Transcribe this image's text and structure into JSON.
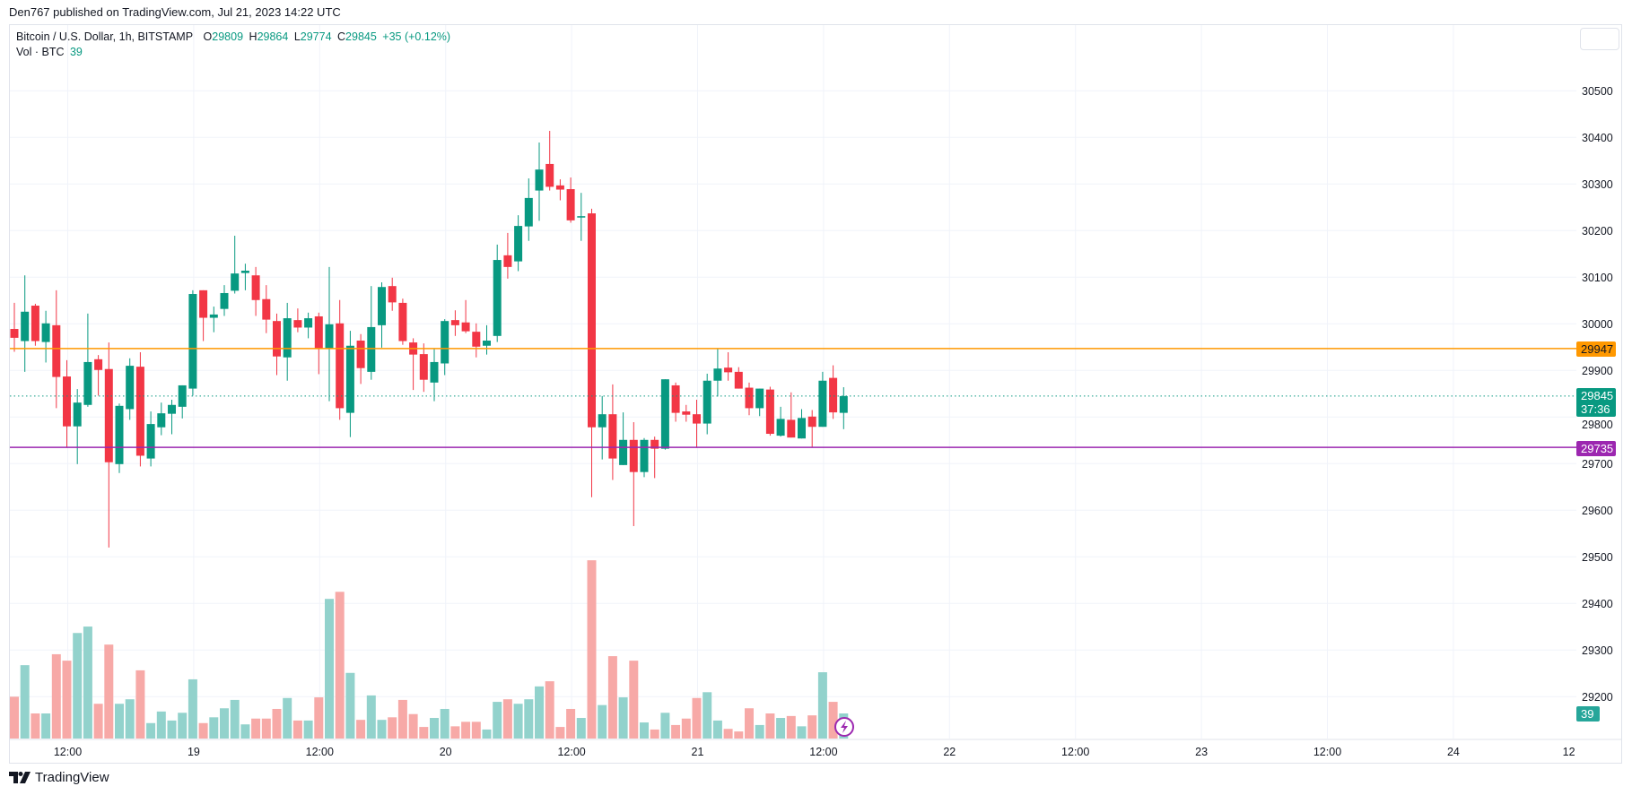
{
  "header": {
    "published": "Den767 published on TradingView.com, Jul 21, 2023 14:22 UTC"
  },
  "legend": {
    "symbol": "Bitcoin / U.S. Dollar, 1h, BITSTAMP",
    "o_label": "O",
    "o": "29809",
    "h_label": "H",
    "h": "29864",
    "l_label": "L",
    "l": "29774",
    "c_label": "C",
    "c": "29845",
    "change": "+35 (+0.12%)",
    "vol_label": "Vol · BTC",
    "vol": "39"
  },
  "tags": {
    "orange_line": "29947",
    "last_price": "29845",
    "countdown": "37:36",
    "purple_line": "29735",
    "volume": "39"
  },
  "footer": {
    "brand": "TradingView"
  },
  "colors": {
    "up": "#089981",
    "down": "#f23645",
    "vol_up": "#92d2cc",
    "vol_down": "#f7a9a7",
    "orange": "#ff9800",
    "purple": "#9c27b0",
    "grid": "#f0f3fa"
  },
  "chart_data": {
    "type": "candlestick",
    "title": "Bitcoin / U.S. Dollar, 1h, BITSTAMP",
    "interval": "1h",
    "first_bar": "Jul 18 07:00",
    "last_bar": "Jul 21 14:00",
    "ylim": [
      29100,
      30560
    ],
    "y_ticks": [
      "30500",
      "30400",
      "30300",
      "30200",
      "30100",
      "30000",
      "29900",
      "29800",
      "29700",
      "29600",
      "29500",
      "29400",
      "29300",
      "29200"
    ],
    "x_ticks": [
      {
        "label": "12:00",
        "hour": 5
      },
      {
        "label": "19",
        "hour": 17
      },
      {
        "label": "12:00",
        "hour": 29
      },
      {
        "label": "20",
        "hour": 41
      },
      {
        "label": "12:00",
        "hour": 53
      },
      {
        "label": "21",
        "hour": 65
      },
      {
        "label": "12:00",
        "hour": 77
      },
      {
        "label": "22",
        "hour": 89
      },
      {
        "label": "12:00",
        "hour": 101
      },
      {
        "label": "23",
        "hour": 113
      },
      {
        "label": "12:00",
        "hour": 125
      },
      {
        "label": "24",
        "hour": 137
      },
      {
        "label": "12",
        "hour": 148
      }
    ],
    "horizontal_lines": [
      {
        "price": 29947,
        "color": "orange"
      },
      {
        "price": 29735,
        "color": "purple"
      }
    ],
    "last_price_line": 29845,
    "ohlc": [
      [
        29989,
        30045,
        29940,
        29970
      ],
      [
        29963,
        30104,
        29897,
        30026
      ],
      [
        30039,
        30043,
        29953,
        29963
      ],
      [
        29961,
        30028,
        29917,
        30001
      ],
      [
        29997,
        30072,
        29819,
        29886
      ],
      [
        29887,
        29922,
        29735,
        29780
      ],
      [
        29780,
        29860,
        29699,
        29831
      ],
      [
        29826,
        30022,
        29822,
        29918
      ],
      [
        29924,
        29933,
        29846,
        29901
      ],
      [
        29903,
        29960,
        29520,
        29703
      ],
      [
        29699,
        29829,
        29680,
        29824
      ],
      [
        29817,
        29926,
        29794,
        29910
      ],
      [
        29908,
        29939,
        29694,
        29717
      ],
      [
        29711,
        29812,
        29694,
        29785
      ],
      [
        29778,
        29831,
        29761,
        29808
      ],
      [
        29807,
        29837,
        29763,
        29826
      ],
      [
        29822,
        29868,
        29797,
        29868
      ],
      [
        29861,
        30072,
        29846,
        30064
      ],
      [
        30072,
        30072,
        29963,
        30013
      ],
      [
        30013,
        30037,
        29982,
        30020
      ],
      [
        30032,
        30083,
        30017,
        30066
      ],
      [
        30071,
        30189,
        30065,
        30108
      ],
      [
        30109,
        30129,
        30072,
        30114
      ],
      [
        30104,
        30122,
        30017,
        30051
      ],
      [
        30053,
        30083,
        29980,
        30009
      ],
      [
        30006,
        30022,
        29890,
        29930
      ],
      [
        29928,
        30045,
        29878,
        30012
      ],
      [
        30008,
        30033,
        29982,
        29992
      ],
      [
        29992,
        30024,
        29969,
        30012
      ],
      [
        30016,
        30024,
        29892,
        29947
      ],
      [
        29947,
        30122,
        29834,
        29999
      ],
      [
        30001,
        30051,
        29794,
        29819
      ],
      [
        29809,
        29985,
        29757,
        29953
      ],
      [
        29964,
        29978,
        29871,
        29905
      ],
      [
        29897,
        30081,
        29880,
        29993
      ],
      [
        29997,
        30089,
        29949,
        30079
      ],
      [
        30081,
        30099,
        30028,
        30046
      ],
      [
        30045,
        30054,
        29955,
        29963
      ],
      [
        29960,
        29969,
        29858,
        29934
      ],
      [
        29935,
        29958,
        29854,
        29880
      ],
      [
        29874,
        29946,
        29834,
        29918
      ],
      [
        29915,
        30010,
        29890,
        30006
      ],
      [
        30008,
        30029,
        29974,
        29997
      ],
      [
        30003,
        30051,
        29980,
        29984
      ],
      [
        29983,
        30001,
        29928,
        29951
      ],
      [
        29953,
        29997,
        29934,
        29964
      ],
      [
        29974,
        30170,
        29961,
        30137
      ],
      [
        30147,
        30195,
        30097,
        30122
      ],
      [
        30134,
        30233,
        30113,
        30210
      ],
      [
        30209,
        30312,
        30178,
        30270
      ],
      [
        30286,
        30389,
        30221,
        30331
      ],
      [
        30343,
        30414,
        30286,
        30294
      ],
      [
        30297,
        30310,
        30265,
        30288
      ],
      [
        30289,
        30314,
        30217,
        30222
      ],
      [
        30228,
        30281,
        30178,
        30231
      ],
      [
        30237,
        30247,
        29628,
        29778
      ],
      [
        29778,
        29845,
        29709,
        29806
      ],
      [
        29806,
        29870,
        29665,
        29711
      ],
      [
        29697,
        29810,
        29697,
        29751
      ],
      [
        29751,
        29789,
        29566,
        29682
      ],
      [
        29682,
        29755,
        29671,
        29751
      ],
      [
        29751,
        29758,
        29669,
        29732
      ],
      [
        29732,
        29881,
        29730,
        29881
      ],
      [
        29868,
        29874,
        29790,
        29809
      ],
      [
        29812,
        29826,
        29790,
        29805
      ],
      [
        29806,
        29837,
        29734,
        29786
      ],
      [
        29786,
        29893,
        29763,
        29878
      ],
      [
        29878,
        29947,
        29844,
        29904
      ],
      [
        29906,
        29939,
        29878,
        29896
      ],
      [
        29897,
        29907,
        29861,
        29861
      ],
      [
        29863,
        29874,
        29804,
        29819
      ],
      [
        29819,
        29861,
        29802,
        29861
      ],
      [
        29859,
        29865,
        29760,
        29764
      ],
      [
        29760,
        29822,
        29758,
        29796
      ],
      [
        29794,
        29853,
        29756,
        29756
      ],
      [
        29754,
        29817,
        29754,
        29798
      ],
      [
        29801,
        29815,
        29735,
        29779
      ],
      [
        29779,
        29897,
        29779,
        29878
      ],
      [
        29884,
        29911,
        29796,
        29810
      ],
      [
        29809,
        29864,
        29774,
        29845
      ]
    ],
    "volume": [
      65,
      114,
      39,
      39,
      131,
      121,
      164,
      174,
      54,
      146,
      54,
      61,
      106,
      24,
      42,
      28,
      40,
      92,
      24,
      33,
      47,
      60,
      22,
      31,
      31,
      46,
      63,
      28,
      28,
      64,
      217,
      228,
      102,
      29,
      67,
      29,
      33,
      60,
      38,
      18,
      32,
      46,
      19,
      26,
      26,
      14,
      57,
      61,
      54,
      61,
      81,
      89,
      18,
      46,
      32,
      277,
      52,
      128,
      64,
      121,
      25,
      14,
      40,
      21,
      31,
      63,
      72,
      28,
      15,
      11,
      47,
      21,
      39,
      32,
      35,
      19,
      36,
      103,
      57,
      39
    ]
  }
}
